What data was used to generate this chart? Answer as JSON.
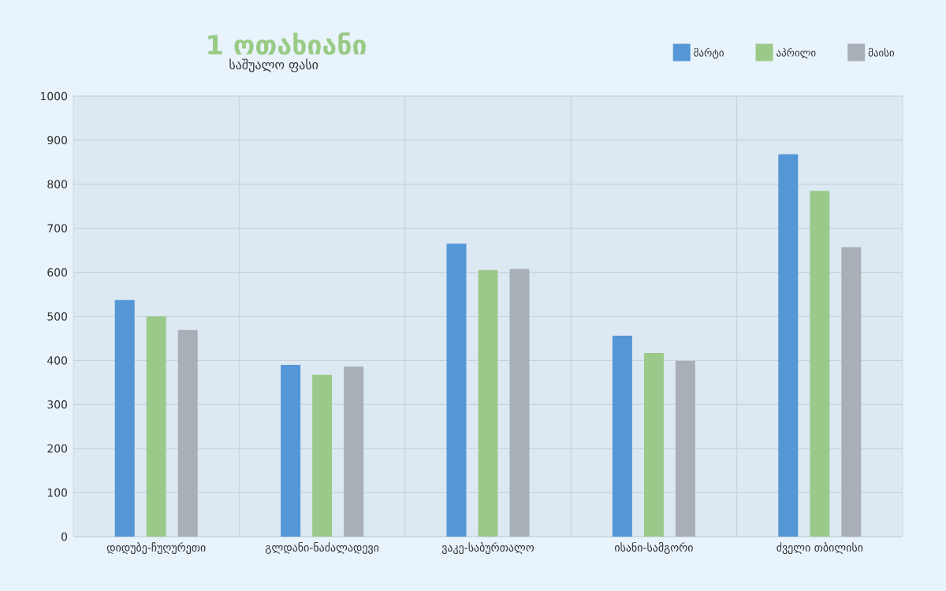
{
  "chart_data": {
    "type": "bar",
    "title": "1 ოთახიანი",
    "subtitle": "საშუალო ფასი",
    "categories": [
      "დიდუბე-ჩუღურეთი",
      "გლდანი-ნაძალადევი",
      "ვაკე-საბურთალო",
      "ისანი-სამგორი",
      "ძველი თბილისი"
    ],
    "series": [
      {
        "name": "მარტი",
        "color": "#5596d6",
        "values": [
          537,
          390,
          665,
          456,
          868
        ]
      },
      {
        "name": "აპრილი",
        "color": "#9ac98a",
        "values": [
          500,
          367,
          605,
          417,
          785
        ]
      },
      {
        "name": "მაისი",
        "color": "#a9afb6",
        "values": [
          469,
          386,
          608,
          399,
          657
        ]
      }
    ],
    "ylim": [
      0,
      1000
    ],
    "yticks": [
      0,
      100,
      200,
      300,
      400,
      500,
      600,
      700,
      800,
      900,
      1000
    ],
    "grid": true,
    "legend": "top right"
  }
}
